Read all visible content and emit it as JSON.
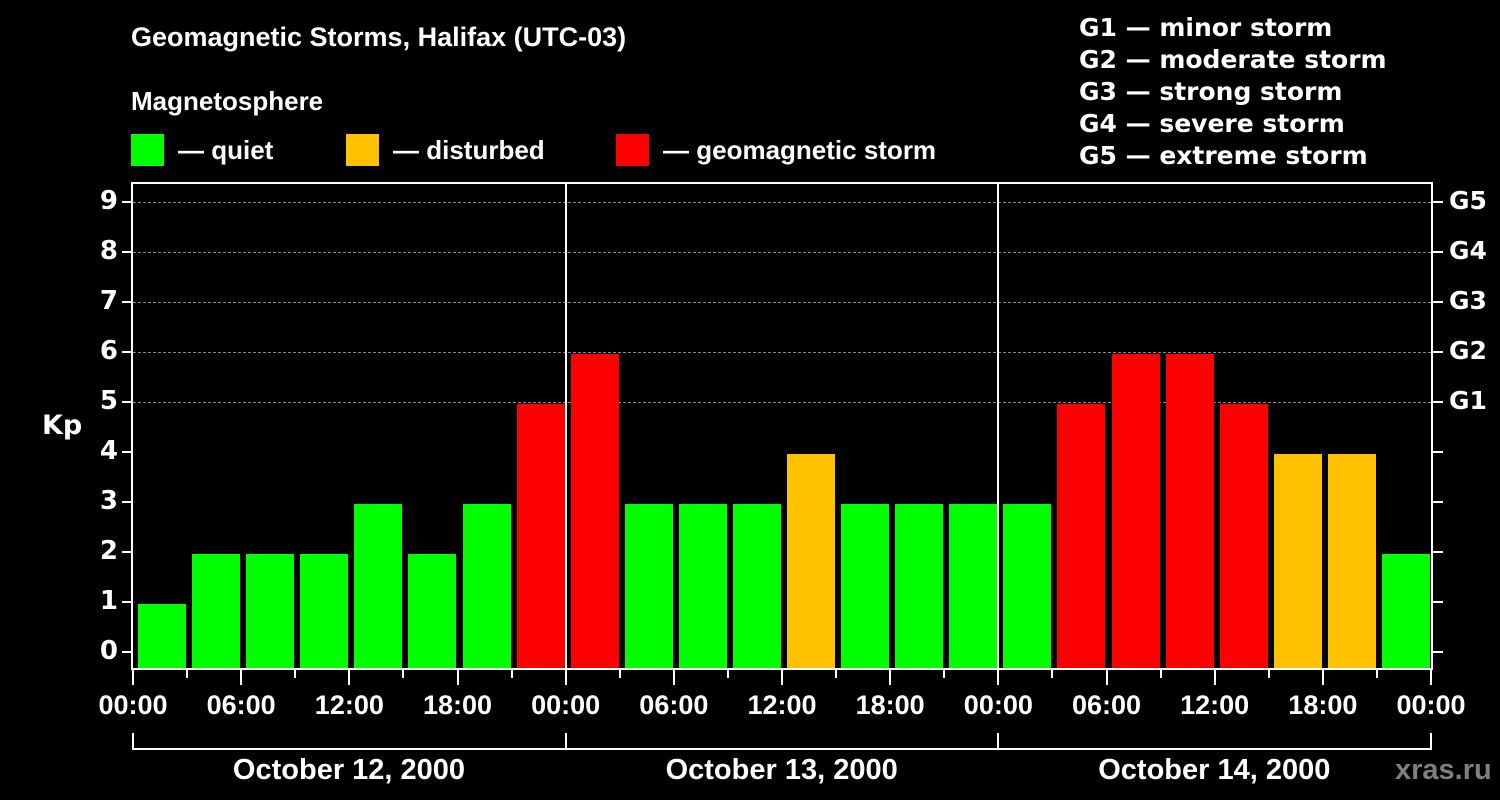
{
  "header": {
    "title": "Geomagnetic Storms, Halifax (UTC-03)",
    "subtitle": "Magnetosphere"
  },
  "legend": [
    {
      "label": "— quiet",
      "color": "#00ff00"
    },
    {
      "label": "— disturbed",
      "color": "#ffc000"
    },
    {
      "label": "— geomagnetic storm",
      "color": "#ff0000"
    }
  ],
  "g_scale": [
    "G1 — minor storm",
    "G2 — moderate storm",
    "G3 — strong storm",
    "G4 — severe storm",
    "G5 — extreme storm"
  ],
  "axes": {
    "ylabel": "Kp",
    "yticks": [
      "0",
      "1",
      "2",
      "3",
      "4",
      "5",
      "6",
      "7",
      "8",
      "9"
    ],
    "right_ticks": [
      {
        "kp": 5,
        "label": "G1"
      },
      {
        "kp": 6,
        "label": "G2"
      },
      {
        "kp": 7,
        "label": "G3"
      },
      {
        "kp": 8,
        "label": "G4"
      },
      {
        "kp": 9,
        "label": "G5"
      }
    ],
    "xticks": [
      "00:00",
      "06:00",
      "12:00",
      "18:00",
      "00:00",
      "06:00",
      "12:00",
      "18:00",
      "00:00",
      "06:00",
      "12:00",
      "18:00",
      "00:00"
    ],
    "days": [
      "October 12, 2000",
      "October 13, 2000",
      "October 14, 2000"
    ]
  },
  "watermark": "xras.ru",
  "colors": {
    "quiet": "#00ff00",
    "disturbed": "#ffc000",
    "storm": "#ff0000",
    "background": "#000000",
    "grid": "#888888"
  },
  "chart_data": {
    "type": "bar",
    "title": "Geomagnetic Storms, Halifax (UTC-03)",
    "xlabel": "",
    "ylabel": "Kp",
    "ylim": [
      0,
      9
    ],
    "grid": "dashed horizontal at Kp 5-9",
    "legend": [
      "quiet",
      "disturbed",
      "geomagnetic storm"
    ],
    "legend_position": "top",
    "categories": [
      "Oct 12 00:00",
      "Oct 12 03:00",
      "Oct 12 06:00",
      "Oct 12 09:00",
      "Oct 12 12:00",
      "Oct 12 15:00",
      "Oct 12 18:00",
      "Oct 12 21:00",
      "Oct 13 00:00",
      "Oct 13 03:00",
      "Oct 13 06:00",
      "Oct 13 09:00",
      "Oct 13 12:00",
      "Oct 13 15:00",
      "Oct 13 18:00",
      "Oct 13 21:00",
      "Oct 14 00:00",
      "Oct 14 03:00",
      "Oct 14 06:00",
      "Oct 14 09:00",
      "Oct 14 12:00",
      "Oct 14 15:00",
      "Oct 14 18:00",
      "Oct 14 21:00"
    ],
    "values": [
      1,
      2,
      2,
      2,
      3,
      2,
      3,
      5,
      6,
      3,
      3,
      3,
      4,
      3,
      3,
      3,
      3,
      5,
      6,
      6,
      5,
      4,
      4,
      2
    ],
    "status": [
      "quiet",
      "quiet",
      "quiet",
      "quiet",
      "quiet",
      "quiet",
      "quiet",
      "storm",
      "storm",
      "quiet",
      "quiet",
      "quiet",
      "disturbed",
      "quiet",
      "quiet",
      "quiet",
      "quiet",
      "storm",
      "storm",
      "storm",
      "storm",
      "disturbed",
      "disturbed",
      "quiet"
    ],
    "right_axis": {
      "G1": 5,
      "G2": 6,
      "G3": 7,
      "G4": 8,
      "G5": 9
    }
  }
}
